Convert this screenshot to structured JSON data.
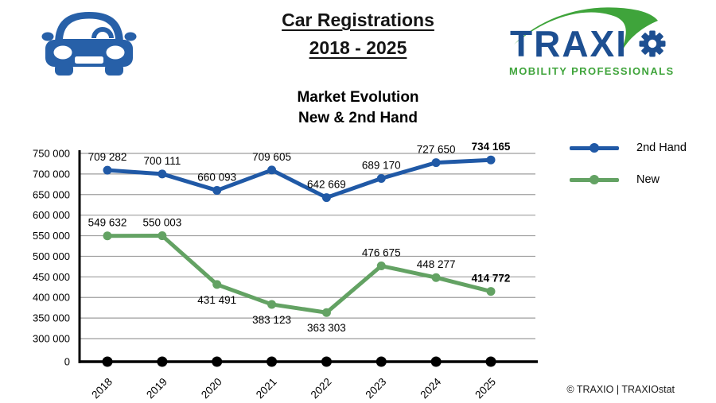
{
  "header": {
    "title_line1": "Car Registrations",
    "title_line2": "2018 - 2025",
    "car_icon": {
      "name": "car-icon",
      "color": "#2760A8"
    },
    "logo": {
      "text": "TRAXI",
      "gear_icon": "gear-as-letter-O",
      "tagline": "MOBILITY PROFESSIONALS",
      "blue": "#1D4F91",
      "green": "#3FA43B"
    }
  },
  "chart_data": {
    "type": "line",
    "title": "Market Evolution",
    "subtitle": "New & 2nd Hand",
    "categories": [
      "2018",
      "2019",
      "2020",
      "2021",
      "2022",
      "2023",
      "2024",
      "2025"
    ],
    "series": [
      {
        "name": "2nd Hand",
        "color": "#2059A6",
        "values": [
          709282,
          700111,
          660093,
          709605,
          642669,
          689170,
          727650,
          734165
        ],
        "labels": [
          "709 282",
          "700 111",
          "660 093",
          "709 605",
          "642 669",
          "689 170",
          "727 650",
          "734 165"
        ],
        "label_position": [
          "above",
          "above",
          "above",
          "above",
          "above",
          "above",
          "above",
          "above"
        ],
        "bold_last_label": true
      },
      {
        "name": "New",
        "color": "#63A263",
        "values": [
          549632,
          550003,
          431491,
          383123,
          363303,
          476675,
          448277,
          414772
        ],
        "labels": [
          "549 632",
          "550 003",
          "431 491",
          "383 123",
          "363 303",
          "476 675",
          "448 277",
          "414 772"
        ],
        "label_position": [
          "above",
          "above",
          "below",
          "below",
          "below",
          "above",
          "above",
          "above"
        ],
        "bold_last_label": true
      }
    ],
    "zero_markers": {
      "color": "#000000",
      "values": [
        0,
        0,
        0,
        0,
        0,
        0,
        0,
        0
      ]
    },
    "y_axis": {
      "grid": true,
      "axis_break": true,
      "ylim": [
        300000,
        750000
      ],
      "ticks": [
        {
          "label": "750 000",
          "value": 750000
        },
        {
          "label": "700 000",
          "value": 700000
        },
        {
          "label": "650 000",
          "value": 650000
        },
        {
          "label": "600 000",
          "value": 600000
        },
        {
          "label": "550 000",
          "value": 550000
        },
        {
          "label": "500 000",
          "value": 500000
        },
        {
          "label": "450 000",
          "value": 450000
        },
        {
          "label": "400 000",
          "value": 400000
        },
        {
          "label": "350 000",
          "value": 350000
        },
        {
          "label": "300 000",
          "value": 300000
        },
        {
          "label": "0",
          "value": 0
        }
      ]
    },
    "legend": {
      "position": "right",
      "entries": [
        "2nd Hand",
        "New"
      ]
    }
  },
  "footer": {
    "credit": "© TRAXIO | TRAXIOstat"
  }
}
